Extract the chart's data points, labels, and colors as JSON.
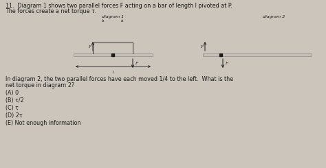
{
  "bg_color": "#ccc5bc",
  "text_color": "#1a1a1a",
  "title_line1": "11.  Diagram 1 shows two parallel forces F acting on a bar of length l pivoted at P.",
  "title_line2": "The forces create a net torque τ.",
  "diagram1_label": "diagram 1",
  "diagram2_label": "diagram 2",
  "lq_label": "l/4",
  "question_line1": "In diagram 2, the two parallel forces have each moved 1/4 to the left.  What is the",
  "question_line2": "net torque in diagram 2?",
  "choices": [
    "(A) 0",
    "(B) τ/2",
    "(C) τ",
    "(D) 2τ",
    "(E) Not enough information"
  ],
  "fs_title": 5.8,
  "fs_diagram": 4.5,
  "fs_label": 4.2,
  "fs_question": 5.8,
  "fs_choice": 5.8,
  "bar_color": "#c8c0b8",
  "bar_edge": "#888888",
  "pivot_color": "#1a1a1a"
}
